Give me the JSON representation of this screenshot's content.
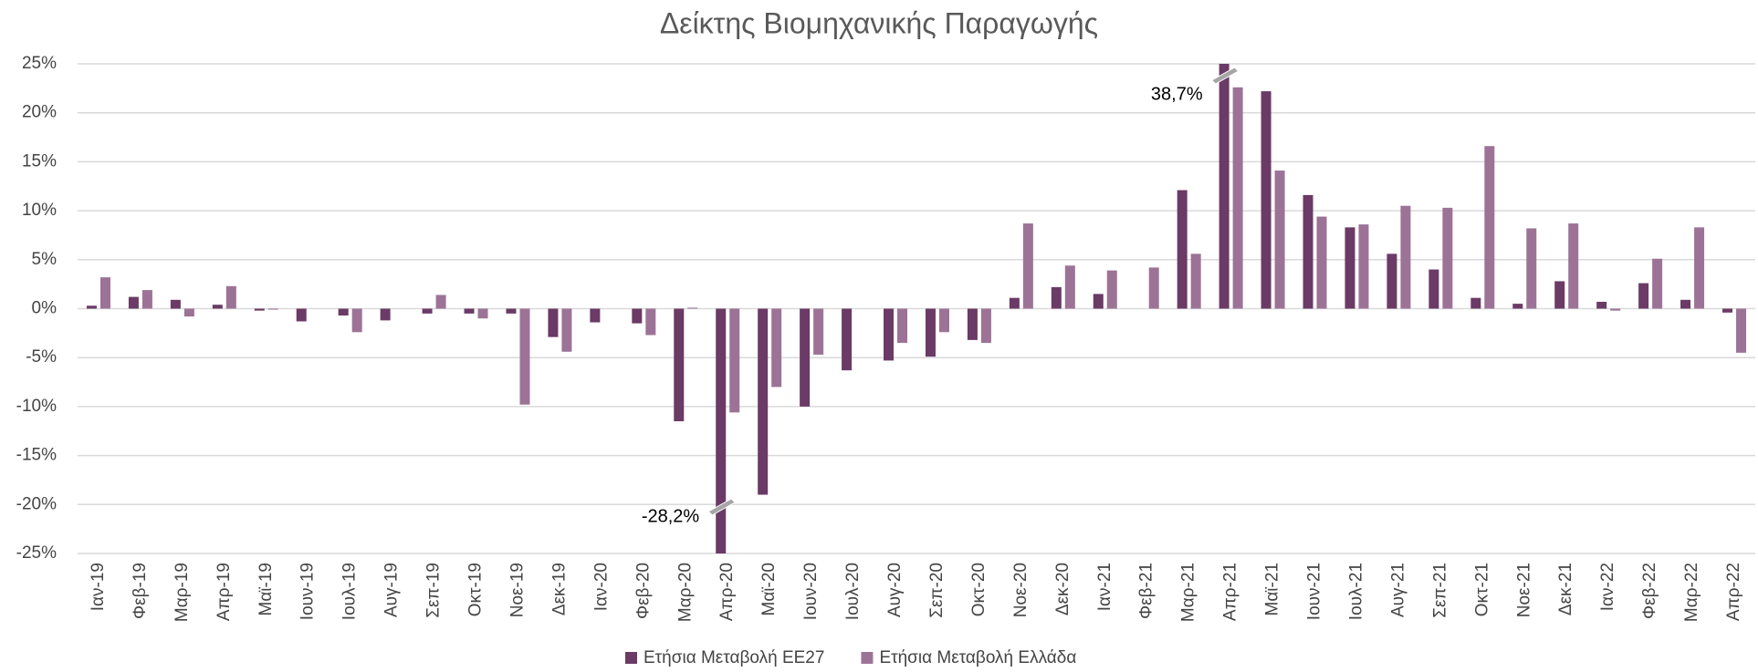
{
  "chart_data": {
    "type": "bar",
    "title": "Δείκτης Βιομηχανικής Παραγωγής",
    "categories": [
      "Ιαν-19",
      "Φεβ-19",
      "Μαρ-19",
      "Απρ-19",
      "Μαϊ-19",
      "Ιουν-19",
      "Ιουλ-19",
      "Αυγ-19",
      "Σεπ-19",
      "Οκτ-19",
      "Νοε-19",
      "Δεκ-19",
      "Ιαν-20",
      "Φεβ-20",
      "Μαρ-20",
      "Απρ-20",
      "Μαϊ-20",
      "Ιουν-20",
      "Ιουλ-20",
      "Αυγ-20",
      "Σεπ-20",
      "Οκτ-20",
      "Νοε-20",
      "Δεκ-20",
      "Ιαν-21",
      "Φεβ-21",
      "Μαρ-21",
      "Απρ-21",
      "Μαϊ-21",
      "Ιουν-21",
      "Ιουλ-21",
      "Αυγ-21",
      "Σεπ-21",
      "Οκτ-21",
      "Νοε-21",
      "Δεκ-21",
      "Ιαν-22",
      "Φεβ-22",
      "Μαρ-22",
      "Απρ-22"
    ],
    "series": [
      {
        "name": "Ετήσια Μεταβολή ΕΕ27",
        "color": "#6b3a66",
        "values": [
          0.3,
          1.2,
          0.9,
          0.4,
          -0.2,
          -1.3,
          -0.7,
          -1.2,
          -0.5,
          -0.5,
          -0.5,
          -2.9,
          -1.4,
          -1.5,
          -11.5,
          -28.2,
          -19.0,
          -10.0,
          -6.3,
          -5.3,
          -4.9,
          -3.2,
          1.1,
          2.2,
          1.5,
          0,
          12.1,
          38.7,
          22.2,
          11.6,
          8.3,
          5.6,
          4.0,
          1.1,
          0.5,
          2.8,
          0.7,
          2.6,
          0.9,
          -0.4
        ],
        "value_labels": [
          null,
          null,
          null,
          null,
          null,
          null,
          null,
          null,
          null,
          null,
          null,
          null,
          null,
          null,
          null,
          "-28,2%",
          null,
          null,
          null,
          null,
          null,
          null,
          null,
          null,
          null,
          null,
          null,
          "38,7%",
          null,
          null,
          null,
          null,
          null,
          null,
          null,
          null,
          null,
          null,
          null,
          null
        ]
      },
      {
        "name": "Ετήσια Μεταβολή Ελλάδα",
        "color": "#9c7396",
        "values": [
          3.2,
          1.9,
          -0.8,
          2.3,
          -0.1,
          0,
          -2.4,
          0,
          1.4,
          -1.0,
          -9.8,
          -4.4,
          0,
          -2.7,
          0.1,
          -10.6,
          -8.0,
          -4.7,
          0,
          -3.5,
          -2.4,
          -3.5,
          8.7,
          4.4,
          3.9,
          4.2,
          5.6,
          22.6,
          14.1,
          9.4,
          8.6,
          10.5,
          10.3,
          16.6,
          8.2,
          8.7,
          -0.2,
          5.1,
          8.3,
          -4.5
        ]
      }
    ],
    "ylim": [
      -25,
      25
    ],
    "yticks": [
      {
        "value": -25,
        "label": "-25%"
      },
      {
        "value": -20,
        "label": "-20%"
      },
      {
        "value": -15,
        "label": "-15%"
      },
      {
        "value": -10,
        "label": "-10%"
      },
      {
        "value": -5,
        "label": "-5%"
      },
      {
        "value": 0,
        "label": "0%"
      },
      {
        "value": 5,
        "label": "5%"
      },
      {
        "value": 10,
        "label": "10%"
      },
      {
        "value": 15,
        "label": "15%"
      },
      {
        "value": 20,
        "label": "20%"
      },
      {
        "value": 25,
        "label": "25%"
      }
    ],
    "grid": true,
    "legend": "bottom"
  }
}
